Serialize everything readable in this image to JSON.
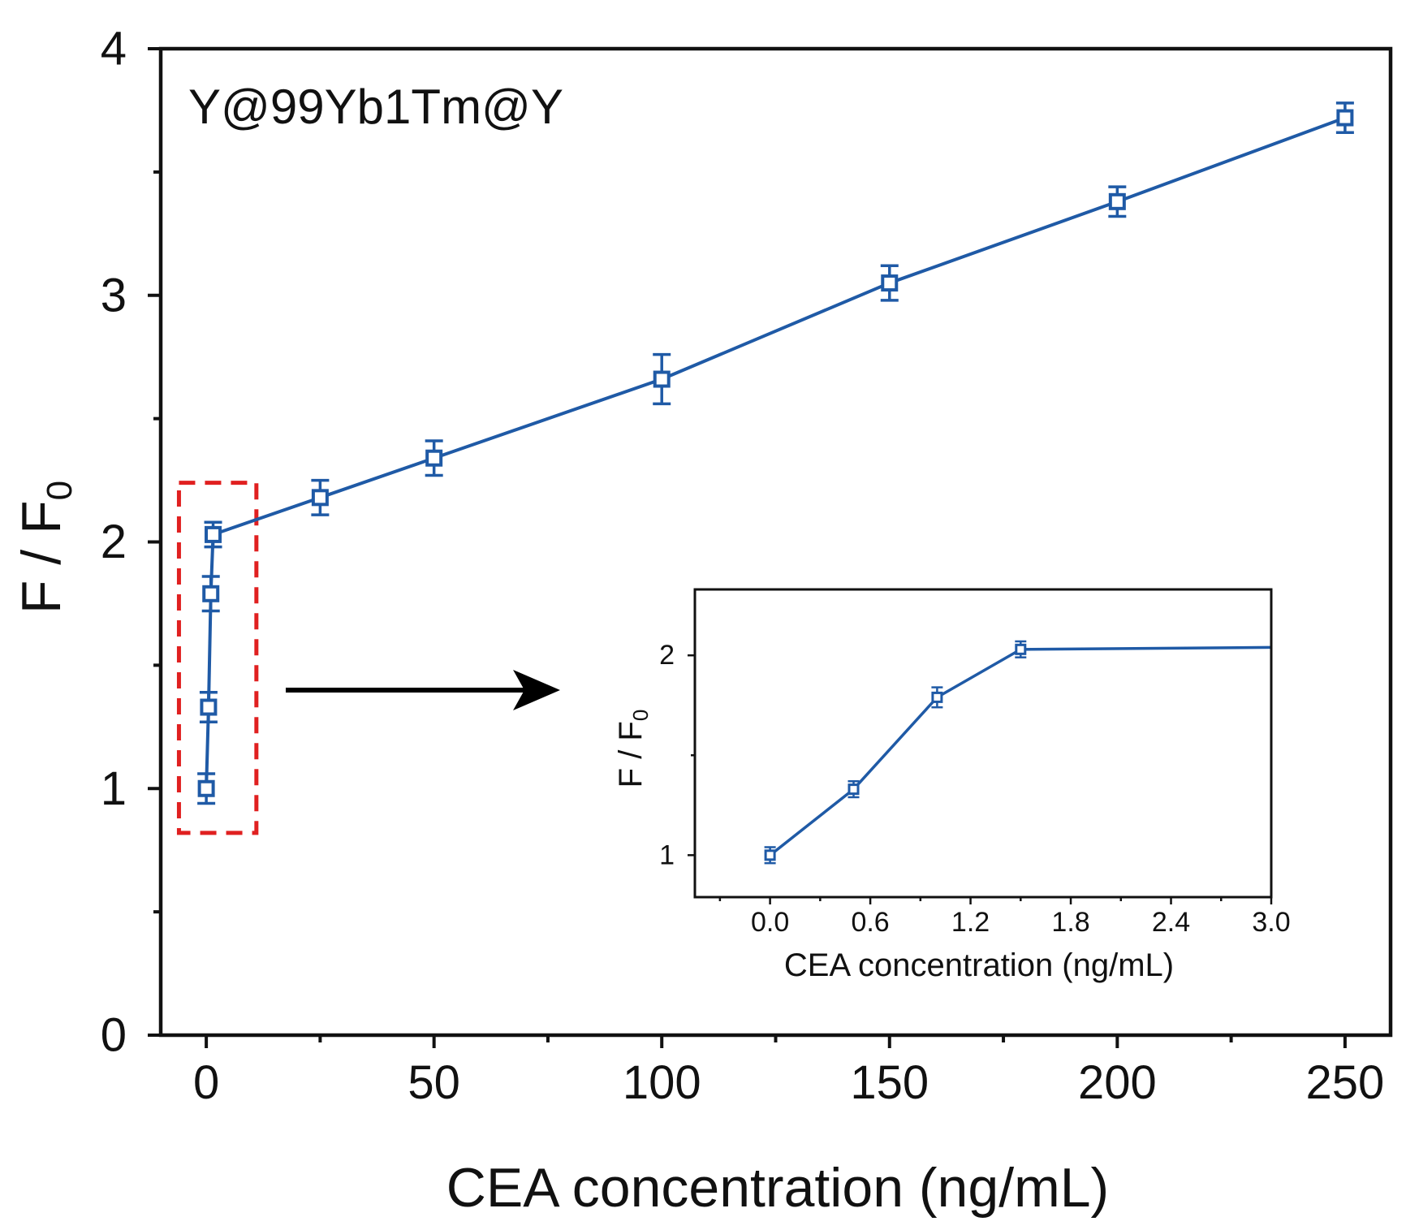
{
  "chart_data": [
    {
      "id": "main",
      "type": "line",
      "title": "Y@99Yb1Tm@Y",
      "xlabel": "CEA concentration (ng/mL)",
      "ylabel": "F / F",
      "ylabel_sub": "0",
      "xlim": [
        -10,
        260
      ],
      "ylim": [
        0,
        4
      ],
      "xticks": [
        0,
        50,
        100,
        150,
        200,
        250
      ],
      "xticks_minor": [
        25,
        75,
        125,
        175,
        225
      ],
      "xtick_labels": [
        "0",
        "50",
        "100",
        "150",
        "200",
        "250"
      ],
      "yticks": [
        0,
        1,
        2,
        3,
        4
      ],
      "yticks_minor": [
        0.5,
        1.5,
        2.5,
        3.5
      ],
      "ytick_labels": [
        "0",
        "1",
        "2",
        "3",
        "4"
      ],
      "series": [
        {
          "name": "F/F0",
          "color": "#1f5aa6",
          "x": [
            0,
            0.5,
            1,
            1.5,
            25,
            50,
            100,
            150,
            200,
            250
          ],
          "y": [
            1.0,
            1.33,
            1.79,
            2.03,
            2.18,
            2.34,
            2.66,
            3.05,
            3.38,
            3.72
          ],
          "err": [
            0.06,
            0.06,
            0.07,
            0.05,
            0.07,
            0.07,
            0.1,
            0.07,
            0.06,
            0.06
          ]
        }
      ],
      "annotation": {
        "highlight_box_color": "#e02020",
        "highlight_x_range": [
          -6,
          11
        ],
        "highlight_y_range": [
          0.82,
          2.24
        ],
        "arrow_color": "#000000"
      }
    },
    {
      "id": "inset",
      "type": "line",
      "title": "",
      "xlabel": "CEA concentration (ng/mL)",
      "ylabel": "F / F",
      "ylabel_sub": "0",
      "xlim": [
        -0.45,
        3.0
      ],
      "ylim": [
        0.79,
        2.33
      ],
      "xticks": [
        0.0,
        0.6,
        1.2,
        1.8,
        2.4,
        3.0
      ],
      "xticks_minor": [
        -0.3,
        0.3,
        0.9,
        1.5,
        2.1,
        2.7
      ],
      "xtick_labels": [
        "0.0",
        "0.6",
        "1.2",
        "1.8",
        "2.4",
        "3.0"
      ],
      "yticks": [
        1,
        2
      ],
      "yticks_minor": [
        1.5
      ],
      "ytick_labels": [
        "1",
        "2"
      ],
      "series": [
        {
          "name": "F/F0",
          "color": "#1f5aa6",
          "x": [
            0,
            0.5,
            1,
            1.5,
            3.0
          ],
          "y": [
            1.0,
            1.33,
            1.79,
            2.03,
            2.04
          ],
          "err": [
            0.04,
            0.04,
            0.05,
            0.04,
            null
          ]
        }
      ]
    }
  ]
}
